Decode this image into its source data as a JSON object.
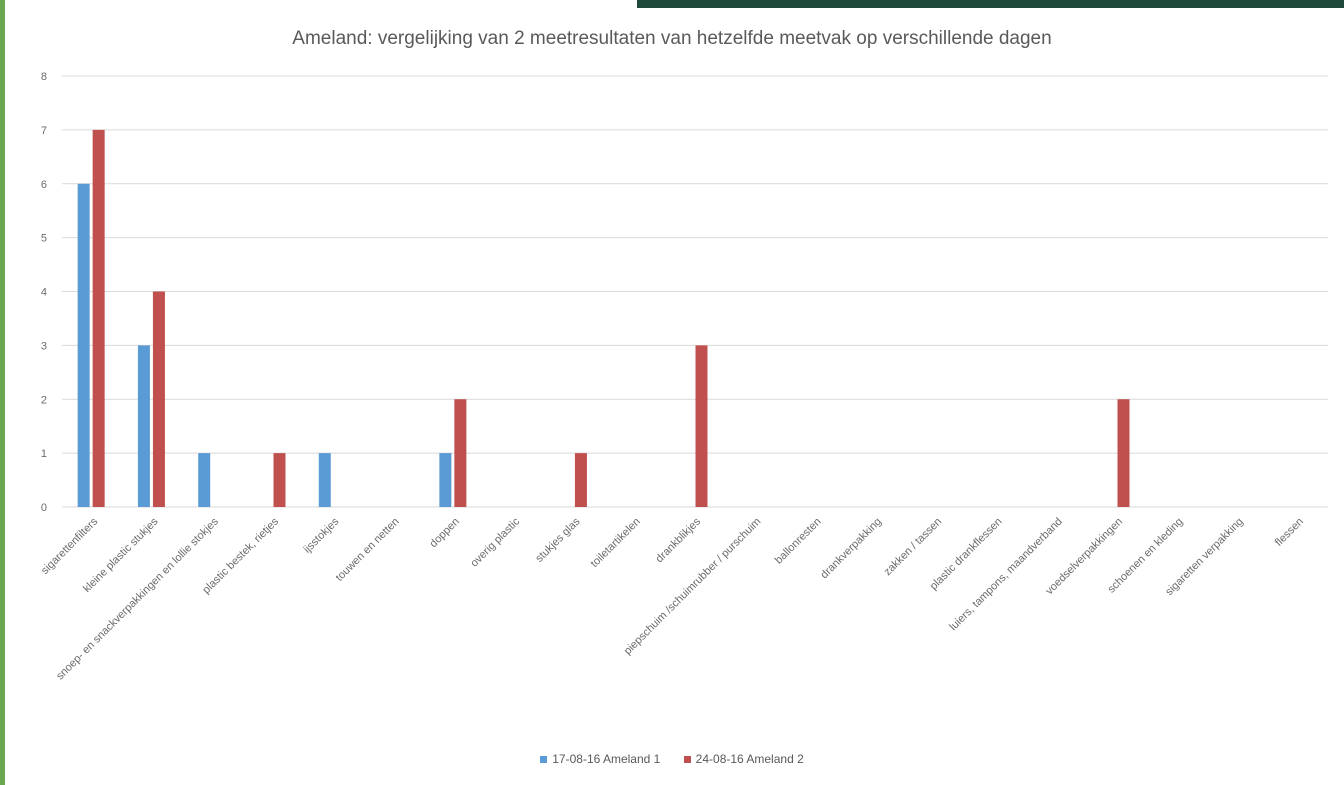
{
  "chart_data": {
    "type": "bar",
    "title": "Ameland: vergelijking van 2 meetresultaten van hetzelfde meetvak op verschillende dagen",
    "xlabel": "",
    "ylabel": "",
    "ylim": [
      0,
      8
    ],
    "yticks": [
      0,
      1,
      2,
      3,
      4,
      5,
      6,
      7,
      8
    ],
    "grid": true,
    "legend_position": "bottom",
    "categories": [
      "sigarettenfilters",
      "kleine plastic stukjes",
      "snoep- en snackverpakkingen en lollie stokjes",
      "plastic bestek, rietjes",
      "ijsstokjes",
      "touwen en netten",
      "doppen",
      "overig plastic",
      "stukjes glas",
      "toiletartikelen",
      "drankblikjes",
      "piepschuim /schuimrubber / purschuim",
      "ballonresten",
      "drankverpakking",
      "zakken / tassen",
      "plastic drankflessen",
      "luiers, tampons, maandverband",
      "voedselverpakkingen",
      "schoenen en kleding",
      "sigaretten verpakking",
      "flessen"
    ],
    "series": [
      {
        "name": "17-08-16 Ameland 1",
        "color": "#5b9bd5",
        "values": [
          6,
          3,
          1,
          0,
          1,
          0,
          1,
          0,
          0,
          0,
          0,
          0,
          0,
          0,
          0,
          0,
          0,
          0,
          0,
          0,
          0
        ]
      },
      {
        "name": "24-08-16 Ameland 2",
        "color": "#c0504d",
        "values": [
          7,
          4,
          0,
          1,
          0,
          0,
          2,
          0,
          1,
          0,
          3,
          0,
          0,
          0,
          0,
          0,
          0,
          2,
          0,
          0,
          0
        ]
      }
    ]
  },
  "decor": {
    "left_border_color": "#6aa84f",
    "top_bar_color": "#1f4a3b",
    "gridline_color": "#d9d9d9"
  }
}
